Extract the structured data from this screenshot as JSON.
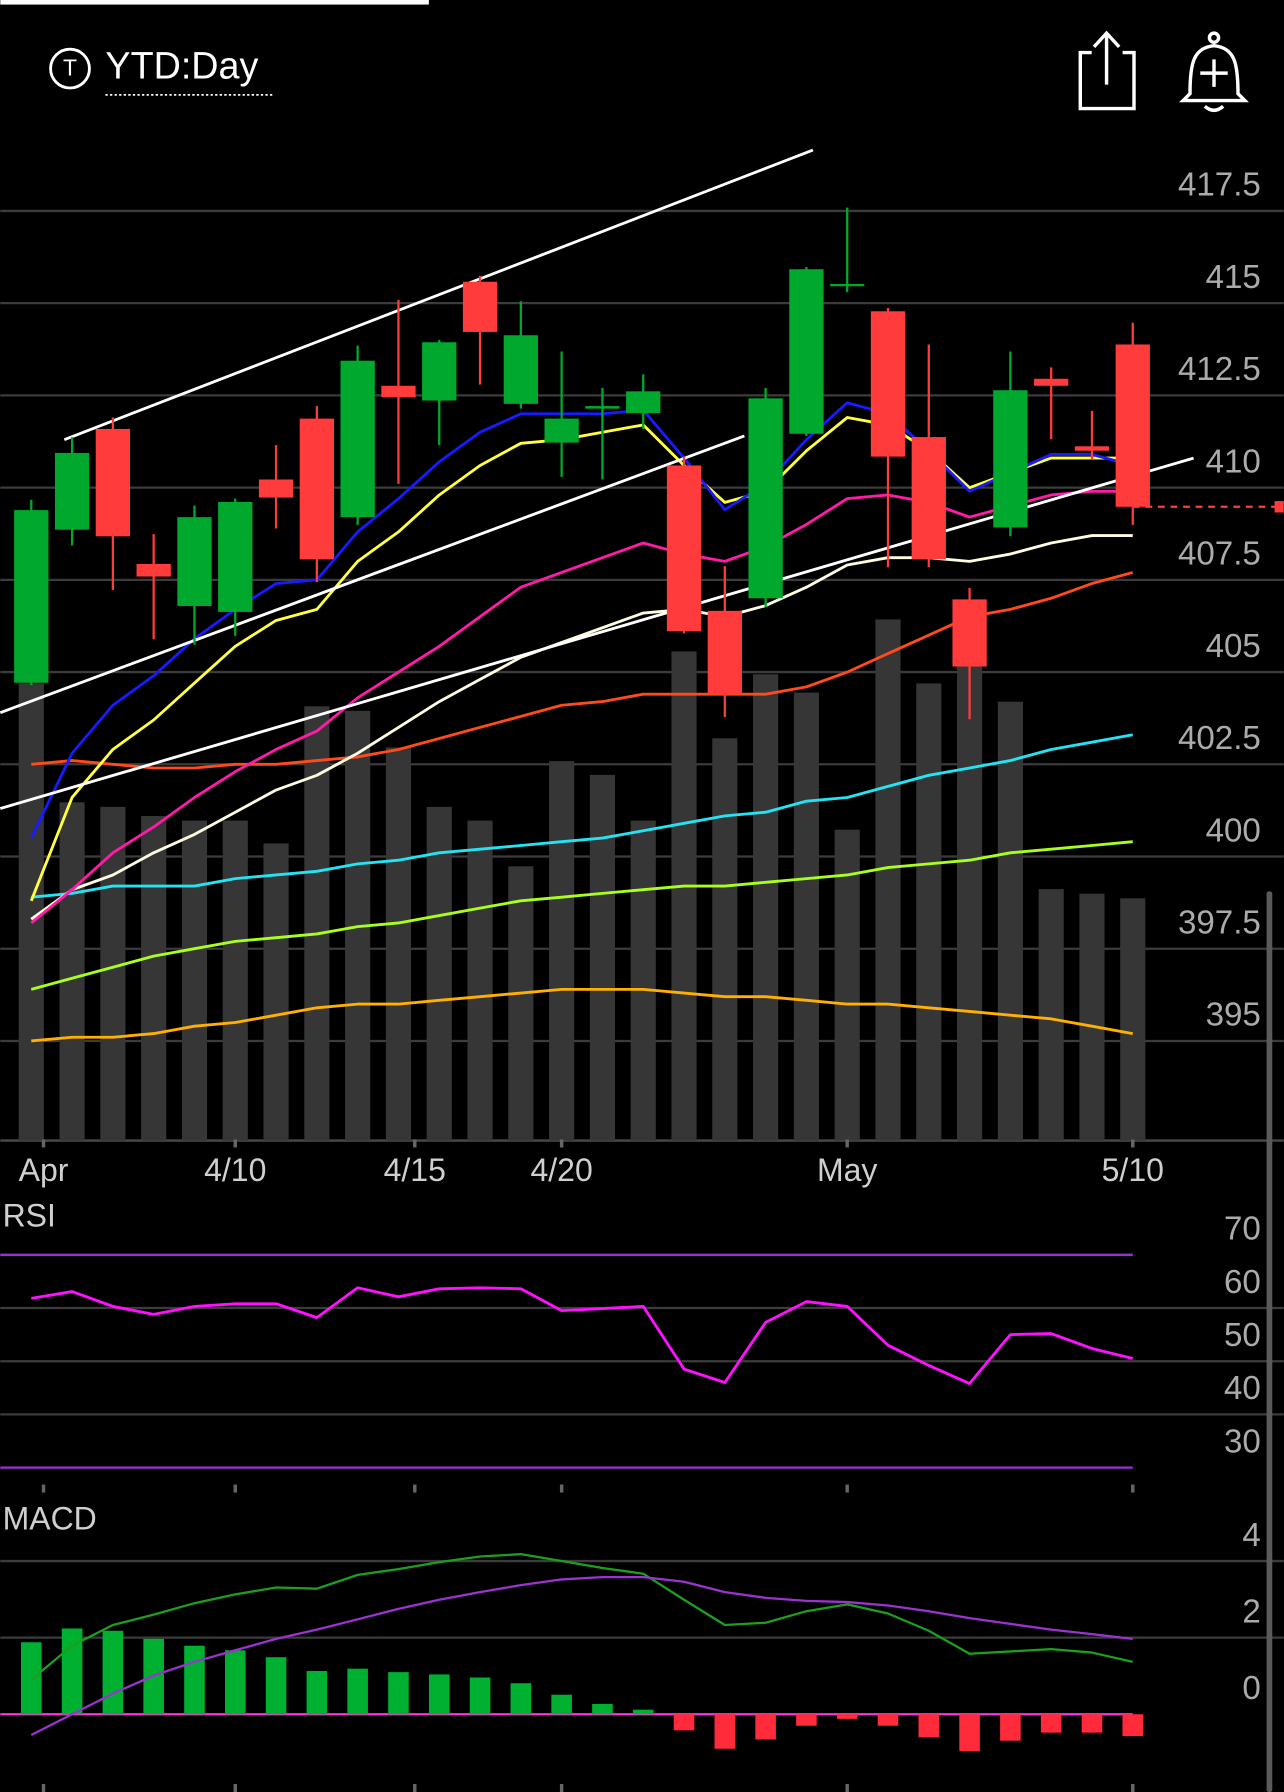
{
  "header": {
    "icon_letter": "T",
    "title": "YTD:Day"
  },
  "chart_data": [
    {
      "type": "candlestick",
      "xlim": [
        -0.76,
        30.7
      ],
      "xticks": [
        {
          "value": 0.3,
          "label": "Apr"
        },
        {
          "value": 5,
          "label": "4/10"
        },
        {
          "value": 9.4,
          "label": "4/15"
        },
        {
          "value": 13,
          "label": "4/20"
        },
        {
          "value": 20,
          "label": "May"
        },
        {
          "value": 27,
          "label": "5/10"
        }
      ],
      "ylim": [
        392.3,
        419.5
      ],
      "yticks": [
        395,
        397.5,
        400,
        402.5,
        405,
        407.5,
        410,
        412.5,
        415,
        417.5
      ],
      "grid": true,
      "up_color": "#00a82d",
      "down_color": "#ff3b3b",
      "open": [
        404.71,
        408.86,
        411.59,
        407.93,
        406.79,
        406.63,
        410.22,
        411.87,
        409.2,
        412.76,
        412.36,
        415.58,
        412.27,
        411.22,
        412.14,
        412.02,
        410.6,
        406.66,
        407.0,
        411.46,
        415.46,
        414.78,
        411.37,
        406.97,
        408.92,
        412.95,
        411.12,
        413.88
      ],
      "high": [
        409.67,
        411.37,
        411.9,
        408.74,
        409.51,
        409.7,
        411.15,
        412.21,
        413.85,
        415.09,
        414.0,
        415.74,
        415.05,
        413.69,
        412.7,
        413.07,
        410.84,
        407.87,
        412.7,
        415.98,
        417.59,
        414.87,
        413.88,
        407.28,
        413.69,
        413.26,
        412.08,
        414.47
      ],
      "low": [
        404.65,
        408.43,
        407.22,
        405.89,
        405.74,
        405.98,
        408.89,
        407.44,
        408.99,
        410.1,
        411.15,
        412.79,
        412.14,
        410.29,
        410.22,
        411.59,
        406.05,
        403.78,
        406.76,
        411.4,
        415.3,
        407.84,
        407.84,
        403.72,
        408.68,
        411.31,
        410.75,
        408.99
      ],
      "close": [
        409.39,
        410.94,
        408.68,
        407.59,
        409.2,
        409.61,
        409.73,
        408.06,
        413.44,
        412.45,
        413.94,
        414.22,
        414.13,
        411.87,
        412.21,
        412.61,
        406.11,
        404.4,
        412.42,
        415.92,
        415.52,
        410.84,
        408.06,
        405.15,
        412.64,
        412.76,
        411.0,
        409.48
      ],
      "volume": [
        100,
        74,
        73,
        71,
        70,
        70,
        65,
        95,
        94,
        86,
        73,
        70,
        60,
        83,
        80,
        70,
        107,
        88,
        102,
        98,
        68,
        114,
        100,
        110,
        96,
        55,
        54,
        53
      ],
      "volume_ylim": [
        0,
        130
      ],
      "volume_color": "#363636",
      "series": [
        {
          "color": "#ffb000",
          "values": [
            395.0,
            395.1,
            395.1,
            395.2,
            395.4,
            395.5,
            395.7,
            395.9,
            396.0,
            396.0,
            396.1,
            396.2,
            396.3,
            396.4,
            396.4,
            396.4,
            396.3,
            396.2,
            396.2,
            396.1,
            396.0,
            396.0,
            395.9,
            395.8,
            395.7,
            395.6,
            395.4,
            395.2
          ]
        },
        {
          "color": "#a8ff1e",
          "values": [
            396.4,
            396.7,
            397.0,
            397.3,
            397.5,
            397.7,
            397.8,
            397.9,
            398.1,
            398.2,
            398.4,
            398.6,
            398.8,
            398.9,
            399.0,
            399.1,
            399.2,
            399.2,
            399.3,
            399.4,
            399.5,
            399.7,
            399.8,
            399.9,
            400.1,
            400.2,
            400.3,
            400.4
          ]
        },
        {
          "color": "#22e4f2",
          "values": [
            398.9,
            399.0,
            399.2,
            399.2,
            399.2,
            399.4,
            399.5,
            399.6,
            399.8,
            399.9,
            400.1,
            400.2,
            400.3,
            400.4,
            400.5,
            400.7,
            400.9,
            401.1,
            401.2,
            401.5,
            401.6,
            401.9,
            402.2,
            402.4,
            402.6,
            402.9,
            403.1,
            403.3
          ]
        },
        {
          "color": "#ff4a1c",
          "values": [
            402.5,
            402.6,
            402.5,
            402.4,
            402.4,
            402.5,
            402.5,
            402.6,
            402.7,
            402.9,
            403.2,
            403.5,
            403.8,
            404.1,
            404.2,
            404.4,
            404.4,
            404.4,
            404.4,
            404.6,
            405.0,
            405.5,
            406.0,
            406.5,
            406.7,
            407.0,
            407.4,
            407.7
          ]
        },
        {
          "color": "#fffbe0",
          "values": [
            398.3,
            399.1,
            399.5,
            400.1,
            400.6,
            401.2,
            401.8,
            402.2,
            402.8,
            403.5,
            404.2,
            404.8,
            405.4,
            405.8,
            406.2,
            406.6,
            406.7,
            406.5,
            406.8,
            407.3,
            407.9,
            408.1,
            408.1,
            408.0,
            408.2,
            408.5,
            408.7,
            408.7
          ]
        },
        {
          "color": "#ff1aa8",
          "values": [
            398.2,
            399.1,
            400.1,
            400.8,
            401.6,
            402.3,
            402.9,
            403.4,
            404.3,
            405.0,
            405.7,
            406.5,
            407.3,
            407.7,
            408.1,
            408.5,
            408.2,
            408.0,
            408.4,
            409.0,
            409.7,
            409.8,
            409.6,
            409.2,
            409.5,
            409.8,
            409.9,
            409.9
          ]
        },
        {
          "color": "#ffff40",
          "values": [
            398.8,
            401.6,
            402.9,
            403.7,
            404.7,
            405.7,
            406.4,
            406.7,
            408.0,
            408.8,
            409.8,
            410.6,
            411.2,
            411.3,
            411.5,
            411.7,
            410.6,
            409.6,
            409.9,
            411.0,
            411.9,
            411.7,
            411.0,
            410.0,
            410.4,
            410.8,
            410.8,
            410.8
          ]
        },
        {
          "color": "#1a1aff",
          "values": [
            400.5,
            402.8,
            404.1,
            404.9,
            405.9,
            406.7,
            407.4,
            407.5,
            408.8,
            409.7,
            410.7,
            411.5,
            412.0,
            412.0,
            412.0,
            412.1,
            410.8,
            409.4,
            410.1,
            411.3,
            412.3,
            412.0,
            411.0,
            409.9,
            410.4,
            410.9,
            410.9,
            410.6
          ]
        }
      ],
      "trendlines": [
        {
          "color": "#ffffff",
          "start": [
            0.81,
            411.3
          ],
          "end": [
            19.16,
            419.15
          ]
        },
        {
          "color": "#ffffff",
          "start": [
            -0.76,
            403.9
          ],
          "end": [
            17.48,
            411.4
          ]
        },
        {
          "color": "#ffffff",
          "start": [
            -0.76,
            401.3
          ],
          "end": [
            28.49,
            410.8
          ]
        }
      ],
      "last_price_color": "#ff3b3b"
    },
    {
      "type": "line",
      "title": "RSI",
      "ylim": [
        26.6,
        80.3
      ],
      "yticks": [
        30,
        40,
        50,
        60,
        70
      ],
      "band_color": "#9b30d9",
      "series": [
        {
          "color": "#ff10ff",
          "values": [
            61.8,
            63.1,
            60.3,
            58.8,
            60.3,
            60.8,
            60.8,
            58.2,
            63.8,
            62.1,
            63.6,
            63.8,
            63.6,
            59.5,
            59.9,
            60.3,
            48.5,
            46.0,
            57.3,
            61.2,
            60.3,
            53.0,
            49.2,
            45.8,
            55.0,
            55.2,
            52.4,
            50.5
          ]
        }
      ]
    },
    {
      "type": "macd",
      "title": "MACD",
      "ylim": [
        -2.03,
        5.52
      ],
      "yticks": [
        0,
        2,
        4
      ],
      "zero_line_color": "#ff33dd",
      "histogram": [
        1.88,
        2.24,
        2.18,
        1.97,
        1.79,
        1.67,
        1.49,
        1.13,
        1.19,
        1.1,
        1.04,
        0.96,
        0.81,
        0.51,
        0.27,
        0.12,
        -0.42,
        -0.9,
        -0.66,
        -0.3,
        -0.12,
        -0.3,
        -0.6,
        -0.96,
        -0.69,
        -0.48,
        -0.48,
        -0.57
      ],
      "histogram_colors": [
        "#00b030",
        "#ff2a3a"
      ],
      "series": [
        {
          "color": "#1e9e1e",
          "values": [
            0.9,
            1.79,
            2.33,
            2.6,
            2.9,
            3.13,
            3.31,
            3.28,
            3.64,
            3.79,
            3.97,
            4.12,
            4.18,
            4.0,
            3.82,
            3.67,
            2.99,
            2.33,
            2.39,
            2.69,
            2.87,
            2.63,
            2.18,
            1.58,
            1.64,
            1.7,
            1.61,
            1.37
          ]
        },
        {
          "color": "#9a33d0",
          "values": [
            -0.54,
            0.0,
            0.54,
            1.01,
            1.37,
            1.67,
            1.97,
            2.21,
            2.48,
            2.75,
            2.99,
            3.19,
            3.37,
            3.52,
            3.58,
            3.58,
            3.46,
            3.19,
            3.04,
            2.96,
            2.93,
            2.84,
            2.69,
            2.51,
            2.36,
            2.21,
            2.09,
            1.97
          ]
        }
      ]
    }
  ]
}
